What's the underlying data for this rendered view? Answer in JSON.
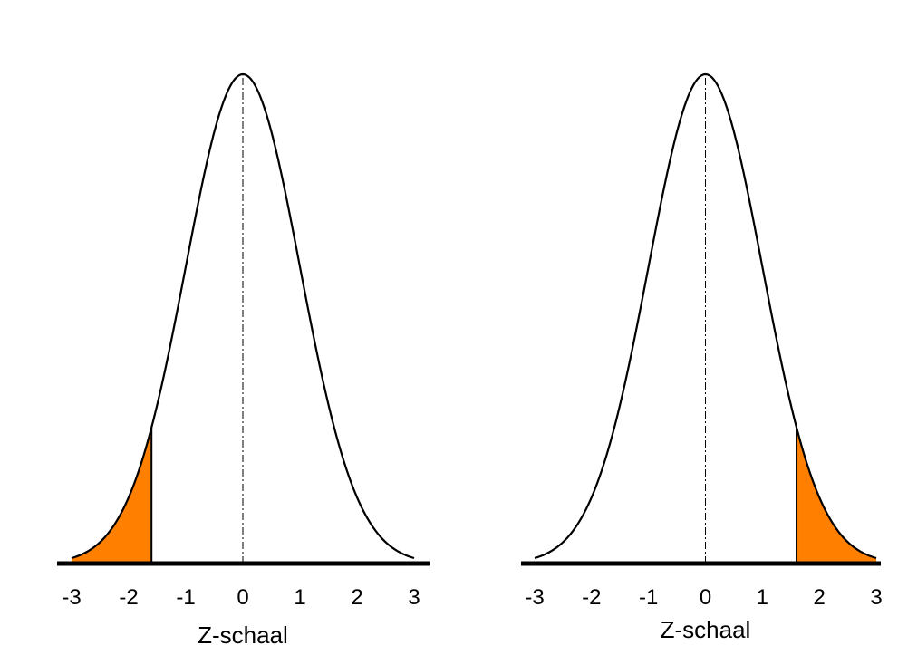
{
  "chart_data": [
    {
      "type": "area",
      "distribution": "standard normal",
      "xlabel": "Z-schaal",
      "ylabel": "",
      "xlim": [
        -3,
        3
      ],
      "xticks": [
        "-3",
        "-2",
        "-1",
        "0",
        "1",
        "2",
        "3"
      ],
      "mean_line": 0,
      "shaded_region": {
        "from": -3,
        "to": -1.6
      },
      "shade_color": "#ff8000",
      "curve_color": "#000000",
      "grid": false
    },
    {
      "type": "area",
      "distribution": "standard normal",
      "xlabel": "Z-schaal",
      "ylabel": "",
      "xlim": [
        -3,
        3
      ],
      "xticks": [
        "-3",
        "-2",
        "-1",
        "0",
        "1",
        "2",
        "3"
      ],
      "mean_line": 0,
      "shaded_region": {
        "from": 1.6,
        "to": 3
      },
      "shade_color": "#ff8000",
      "curve_color": "#000000",
      "grid": false
    }
  ]
}
